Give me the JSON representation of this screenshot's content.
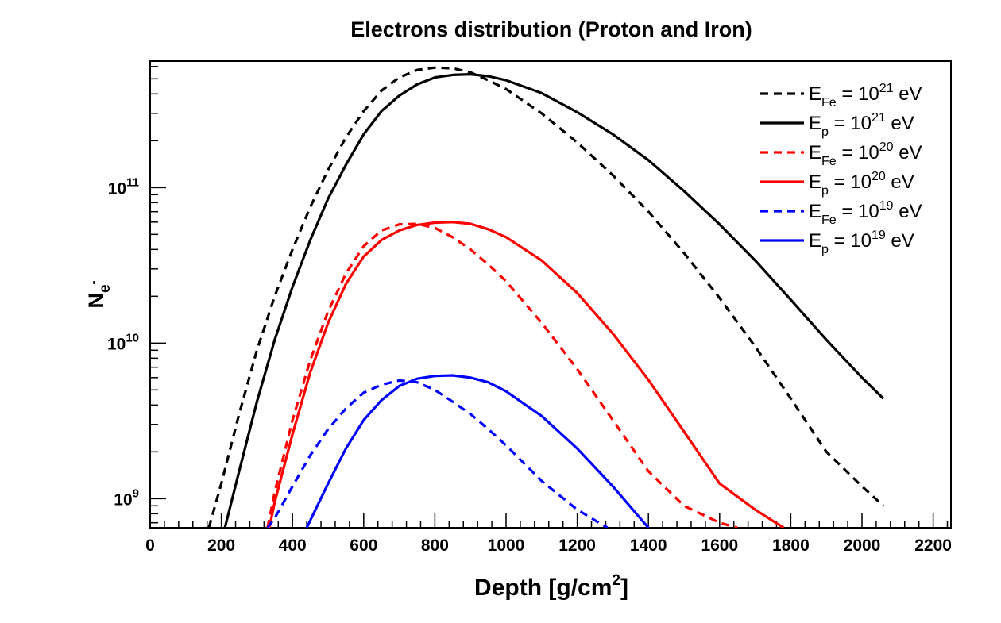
{
  "chart_data": {
    "type": "line",
    "title": "Electrons distribution (Proton and Iron)",
    "xlabel": {
      "text": "Depth",
      "unit_pre": "[g/cm",
      "unit_sup": "2",
      "unit_post": "]"
    },
    "ylabel": {
      "main": "N",
      "sub": "e",
      "sup": "-"
    },
    "xlim": [
      0,
      2250
    ],
    "ylim": [
      650000000,
      650000000000
    ],
    "yscale": "log",
    "grid": false,
    "legend_position": "top-right",
    "x_ticks": [
      {
        "value": 0,
        "label": "0"
      },
      {
        "value": 200,
        "label": "200"
      },
      {
        "value": 400,
        "label": "400"
      },
      {
        "value": 600,
        "label": "600"
      },
      {
        "value": 800,
        "label": "800"
      },
      {
        "value": 1000,
        "label": "1000"
      },
      {
        "value": 1200,
        "label": "1200"
      },
      {
        "value": 1400,
        "label": "1400"
      },
      {
        "value": 1600,
        "label": "1600"
      },
      {
        "value": 1800,
        "label": "1800"
      },
      {
        "value": 2000,
        "label": "2000"
      },
      {
        "value": 2200,
        "label": "2200"
      }
    ],
    "y_ticks": [
      {
        "value": 1000000000,
        "base": "10",
        "exp": "9"
      },
      {
        "value": 10000000000,
        "base": "10",
        "exp": "10"
      },
      {
        "value": 100000000000,
        "base": "10",
        "exp": "11"
      }
    ],
    "series": [
      {
        "legend": {
          "main": "E",
          "sub": "Fe",
          "eq": " = 10",
          "sup": "21",
          "unit": " eV"
        },
        "color": "#000000",
        "dash": true,
        "x": [
          165,
          200,
          250,
          300,
          350,
          400,
          450,
          500,
          550,
          600,
          650,
          700,
          750,
          800,
          850,
          900,
          950,
          1000,
          1100,
          1200,
          1300,
          1400,
          1500,
          1600,
          1700,
          1800,
          1900,
          2000,
          2060
        ],
        "y": [
          650000000.0,
          1250000000.0,
          3500000000.0,
          9000000000.0,
          20000000000.0,
          40000000000.0,
          75000000000.0,
          130000000000.0,
          210000000000.0,
          310000000000.0,
          420000000000.0,
          510000000000.0,
          570000000000.0,
          590000000000.0,
          585000000000.0,
          550000000000.0,
          490000000000.0,
          430000000000.0,
          300000000000.0,
          195000000000.0,
          120000000000.0,
          70000000000.0,
          38000000000.0,
          19500000000.0,
          9500000000.0,
          4400000000.0,
          2000000000.0,
          1200000000.0,
          900000000.0
        ]
      },
      {
        "legend": {
          "main": "E",
          "sub": "p",
          "eq": " = 10",
          "sup": "21",
          "unit": " eV"
        },
        "color": "#000000",
        "dash": false,
        "x": [
          210,
          250,
          300,
          350,
          400,
          450,
          500,
          550,
          600,
          650,
          700,
          750,
          800,
          850,
          900,
          950,
          1000,
          1100,
          1200,
          1300,
          1400,
          1500,
          1600,
          1700,
          1800,
          1900,
          2000,
          2060
        ],
        "y": [
          650000000.0,
          1500000000.0,
          4200000000.0,
          10500000000.0,
          23000000000.0,
          46000000000.0,
          85000000000.0,
          140000000000.0,
          220000000000.0,
          310000000000.0,
          390000000000.0,
          460000000000.0,
          510000000000.0,
          530000000000.0,
          535000000000.0,
          520000000000.0,
          490000000000.0,
          405000000000.0,
          305000000000.0,
          220000000000.0,
          150000000000.0,
          95000000000.0,
          58000000000.0,
          34000000000.0,
          19000000000.0,
          10500000000.0,
          6000000000.0,
          4400000000.0
        ]
      },
      {
        "legend": {
          "main": "E",
          "sub": "Fe",
          "eq": " = 10",
          "sup": "20",
          "unit": " eV"
        },
        "color": "#ff0000",
        "dash": true,
        "x": [
          330,
          350,
          400,
          450,
          500,
          550,
          600,
          650,
          700,
          750,
          800,
          850,
          900,
          950,
          1000,
          1100,
          1200,
          1300,
          1400,
          1500,
          1600,
          1650
        ],
        "y": [
          650000000.0,
          1100000000.0,
          3200000000.0,
          7800000000.0,
          16000000000.0,
          28000000000.0,
          42000000000.0,
          53000000000.0,
          58000000000.0,
          58500000000.0,
          55000000000.0,
          48000000000.0,
          40000000000.0,
          32000000000.0,
          25000000000.0,
          13500000000.0,
          6800000000.0,
          3200000000.0,
          1500000000.0,
          900000000.0,
          700000000.0,
          650000000.0
        ]
      },
      {
        "legend": {
          "main": "E",
          "sub": "p",
          "eq": " = 10",
          "sup": "20",
          "unit": " eV"
        },
        "color": "#ff0000",
        "dash": false,
        "x": [
          335,
          350,
          400,
          450,
          500,
          550,
          600,
          650,
          700,
          750,
          800,
          850,
          900,
          950,
          1000,
          1100,
          1200,
          1300,
          1400,
          1500,
          1600,
          1700,
          1780
        ],
        "y": [
          650000000.0,
          950000000.0,
          2600000000.0,
          6500000000.0,
          13500000000.0,
          24000000000.0,
          36000000000.0,
          46000000000.0,
          53000000000.0,
          57500000000.0,
          59500000000.0,
          60000000000.0,
          58500000000.0,
          54000000000.0,
          48000000000.0,
          34000000000.0,
          21000000000.0,
          11500000000.0,
          5800000000.0,
          2700000000.0,
          1250000000.0,
          850000000.0,
          650000000.0
        ]
      },
      {
        "legend": {
          "main": "E",
          "sub": "Fe",
          "eq": " = 10",
          "sup": "19",
          "unit": " eV"
        },
        "color": "#0000ff",
        "dash": true,
        "x": [
          330,
          350,
          400,
          450,
          500,
          550,
          600,
          650,
          700,
          750,
          800,
          850,
          900,
          950,
          1000,
          1100,
          1200,
          1285
        ],
        "y": [
          650000000.0,
          750000000.0,
          1200000000.0,
          1900000000.0,
          2800000000.0,
          3800000000.0,
          4800000000.0,
          5400000000.0,
          5750000000.0,
          5600000000.0,
          5000000000.0,
          4200000000.0,
          3500000000.0,
          2800000000.0,
          2200000000.0,
          1300000000.0,
          850000000.0,
          650000000.0
        ]
      },
      {
        "legend": {
          "main": "E",
          "sub": "p",
          "eq": " = 10",
          "sup": "19",
          "unit": " eV"
        },
        "color": "#0000ff",
        "dash": false,
        "x": [
          440,
          500,
          550,
          600,
          650,
          700,
          750,
          800,
          850,
          900,
          950,
          1000,
          1100,
          1200,
          1300,
          1400
        ],
        "y": [
          650000000.0,
          1250000000.0,
          2100000000.0,
          3200000000.0,
          4300000000.0,
          5300000000.0,
          5900000000.0,
          6150000000.0,
          6200000000.0,
          6000000000.0,
          5600000000.0,
          4900000000.0,
          3400000000.0,
          2100000000.0,
          1200000000.0,
          650000000.0
        ]
      }
    ]
  }
}
